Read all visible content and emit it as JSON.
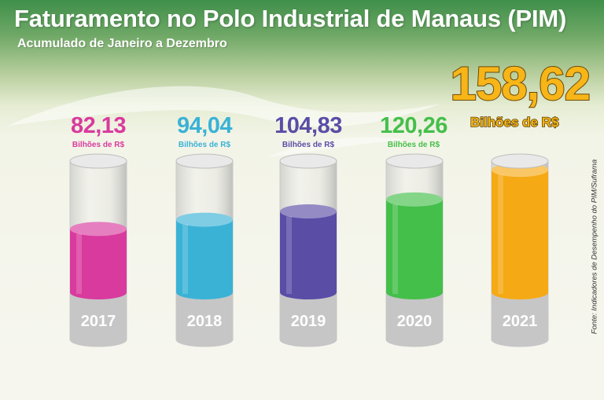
{
  "title": "Faturamento no Polo Industrial de Manaus (PIM)",
  "subtitle": "Acumulado de Janeiro a Dezembro",
  "highlight": {
    "value": "158,62",
    "unit": "Bilhões de R$"
  },
  "source": "Fonte: Indicadores de Desempenho do PIM/Suframa",
  "colors": {
    "2017": "#d93a9e",
    "2018": "#3ab2d6",
    "2019": "#5a4da6",
    "2020": "#44bf4a",
    "2021": "#f5a914"
  },
  "chart_data": {
    "type": "bar",
    "categories": [
      "2017",
      "2018",
      "2019",
      "2020",
      "2021"
    ],
    "values": [
      82.13,
      94.04,
      104.83,
      120.26,
      158.62
    ],
    "value_labels": [
      "82,13",
      "94,04",
      "104,83",
      "120,26",
      "158,62"
    ],
    "unit_label": "Bilhões de R$",
    "ylim": [
      0,
      170
    ],
    "grid": false,
    "legend": "none"
  }
}
